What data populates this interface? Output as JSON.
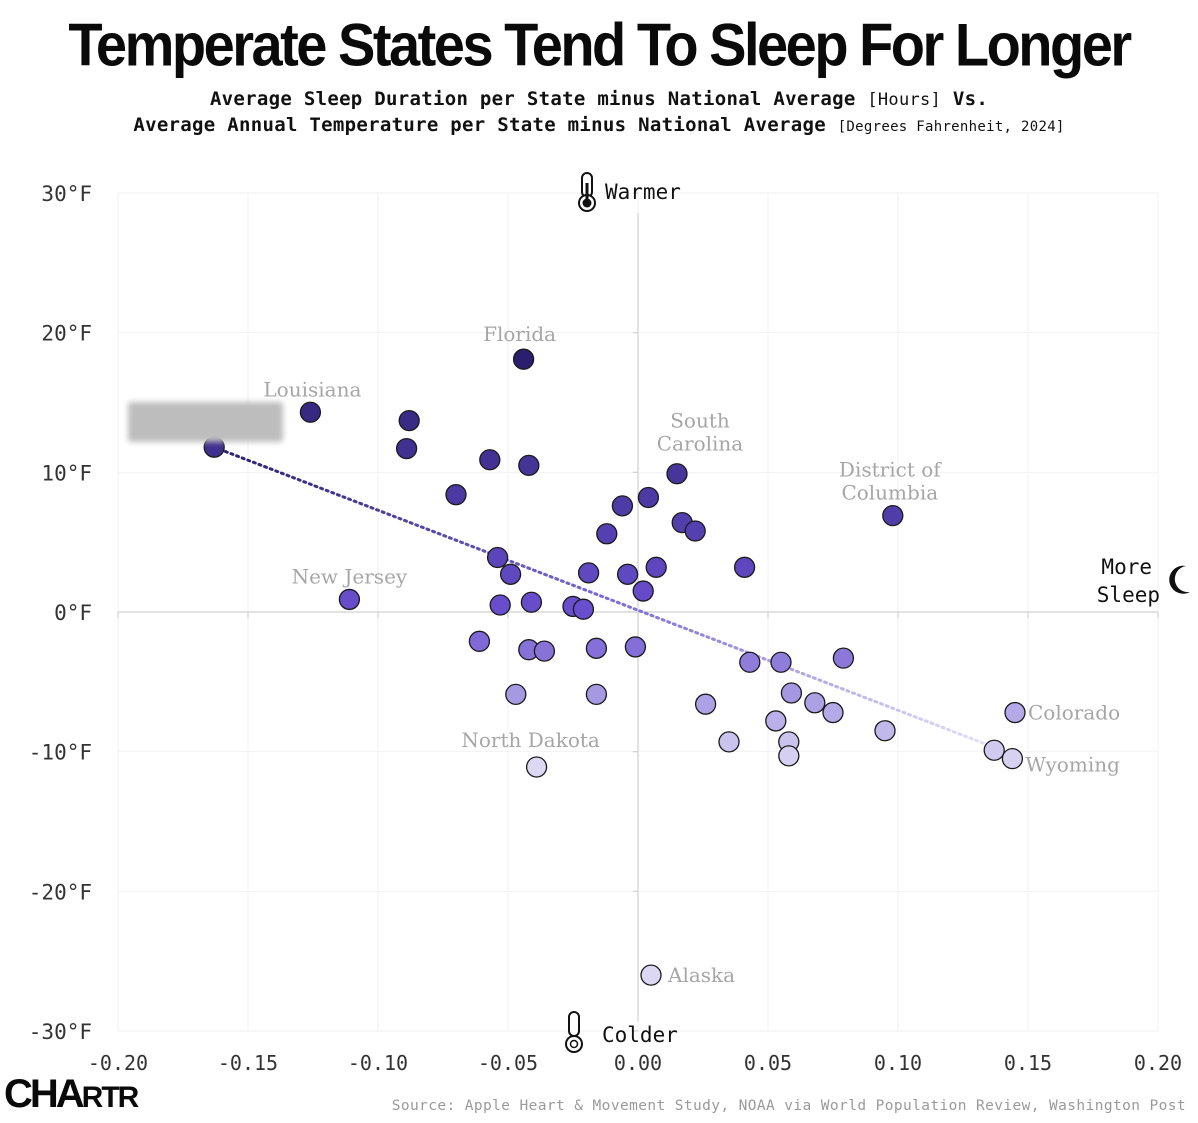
{
  "header": {
    "title": "Temperate States Tend To Sleep For Longer",
    "subtitle_line1_main": "Average Sleep Duration per State minus National Average",
    "subtitle_line1_unit": "[Hours]",
    "subtitle_line1_tail": "Vs.",
    "subtitle_line2_main": "Average Annual Temperature per State minus National Average",
    "subtitle_line2_unit": "[Degrees Fahrenheit, 2024]"
  },
  "footer": {
    "brand_c": "C",
    "brand_h": "H",
    "brand_a": "A",
    "brand_rtr": "RTR",
    "source": "Source: Apple Heart & Movement Study, NOAA via World Population Review, Washington Post"
  },
  "colors": {
    "dark": "#2a1f6e",
    "mid": "#6a4fcf",
    "light": "#dcd8f3",
    "label_gray": "#a6a6a6",
    "axis": "#d0d0d0"
  },
  "chart_data": {
    "type": "scatter",
    "xlim": [
      -0.2,
      0.2
    ],
    "ylim": [
      -30,
      30
    ],
    "x_ticks": [
      -0.2,
      -0.15,
      -0.1,
      -0.05,
      0.0,
      0.05,
      0.1,
      0.15,
      0.2
    ],
    "x_tick_labels": [
      "-0.20",
      "-0.15",
      "-0.10",
      "-0.05",
      "0.00",
      "0.05",
      "0.10",
      "0.15",
      "0.20"
    ],
    "y_ticks": [
      30,
      20,
      10,
      0,
      -10,
      -20,
      -30
    ],
    "y_tick_labels": [
      "30°F",
      "20°F",
      "10°F",
      "0°F",
      "-10°F",
      "-20°F",
      "-30°F"
    ],
    "axis_annotations": {
      "top": "Warmer",
      "bottom": "Colder",
      "right_line1": "More",
      "right_line2": "Sleep"
    },
    "grid": true,
    "trendline": {
      "x1": -0.163,
      "y1": 11.8,
      "x2": 0.14,
      "y2": -9.9,
      "style": "dotted"
    },
    "points": [
      {
        "x": -0.163,
        "y": 11.8,
        "label": ""
      },
      {
        "x": -0.126,
        "y": 14.3,
        "label": "Louisiana"
      },
      {
        "x": -0.088,
        "y": 13.7,
        "label": ""
      },
      {
        "x": -0.089,
        "y": 11.7,
        "label": ""
      },
      {
        "x": -0.044,
        "y": 18.1,
        "label": "Florida"
      },
      {
        "x": -0.057,
        "y": 10.9,
        "label": ""
      },
      {
        "x": -0.042,
        "y": 10.5,
        "label": ""
      },
      {
        "x": -0.07,
        "y": 8.4,
        "label": ""
      },
      {
        "x": 0.015,
        "y": 9.9,
        "label": "South Carolina"
      },
      {
        "x": 0.098,
        "y": 6.9,
        "label": "District of Columbia"
      },
      {
        "x": 0.004,
        "y": 8.2,
        "label": ""
      },
      {
        "x": -0.006,
        "y": 7.6,
        "label": ""
      },
      {
        "x": 0.017,
        "y": 6.4,
        "label": ""
      },
      {
        "x": 0.022,
        "y": 5.8,
        "label": ""
      },
      {
        "x": -0.012,
        "y": 5.6,
        "label": ""
      },
      {
        "x": -0.054,
        "y": 3.9,
        "label": ""
      },
      {
        "x": -0.049,
        "y": 2.7,
        "label": ""
      },
      {
        "x": -0.019,
        "y": 2.8,
        "label": ""
      },
      {
        "x": -0.004,
        "y": 2.7,
        "label": ""
      },
      {
        "x": 0.007,
        "y": 3.2,
        "label": ""
      },
      {
        "x": 0.041,
        "y": 3.2,
        "label": ""
      },
      {
        "x": 0.002,
        "y": 1.5,
        "label": ""
      },
      {
        "x": -0.111,
        "y": 0.9,
        "label": "New Jersey"
      },
      {
        "x": -0.053,
        "y": 0.5,
        "label": ""
      },
      {
        "x": -0.041,
        "y": 0.7,
        "label": ""
      },
      {
        "x": -0.025,
        "y": 0.4,
        "label": ""
      },
      {
        "x": -0.021,
        "y": 0.2,
        "label": ""
      },
      {
        "x": -0.061,
        "y": -2.1,
        "label": ""
      },
      {
        "x": -0.042,
        "y": -2.7,
        "label": ""
      },
      {
        "x": -0.036,
        "y": -2.8,
        "label": ""
      },
      {
        "x": -0.016,
        "y": -2.6,
        "label": ""
      },
      {
        "x": -0.001,
        "y": -2.5,
        "label": ""
      },
      {
        "x": 0.043,
        "y": -3.6,
        "label": ""
      },
      {
        "x": 0.055,
        "y": -3.6,
        "label": ""
      },
      {
        "x": 0.079,
        "y": -3.3,
        "label": ""
      },
      {
        "x": -0.047,
        "y": -5.9,
        "label": ""
      },
      {
        "x": -0.016,
        "y": -5.9,
        "label": ""
      },
      {
        "x": 0.026,
        "y": -6.6,
        "label": ""
      },
      {
        "x": 0.059,
        "y": -5.8,
        "label": ""
      },
      {
        "x": 0.068,
        "y": -6.5,
        "label": ""
      },
      {
        "x": 0.075,
        "y": -7.2,
        "label": ""
      },
      {
        "x": 0.053,
        "y": -7.8,
        "label": ""
      },
      {
        "x": 0.095,
        "y": -8.5,
        "label": ""
      },
      {
        "x": 0.145,
        "y": -7.2,
        "label": "Colorado"
      },
      {
        "x": 0.035,
        "y": -9.3,
        "label": ""
      },
      {
        "x": 0.058,
        "y": -9.3,
        "label": ""
      },
      {
        "x": 0.058,
        "y": -10.3,
        "label": ""
      },
      {
        "x": 0.137,
        "y": -9.9,
        "label": ""
      },
      {
        "x": 0.144,
        "y": -10.5,
        "label": "Wyoming"
      },
      {
        "x": -0.039,
        "y": -11.1,
        "label": "North Dakota"
      },
      {
        "x": 0.005,
        "y": -26.0,
        "label": "Alaska"
      }
    ]
  }
}
